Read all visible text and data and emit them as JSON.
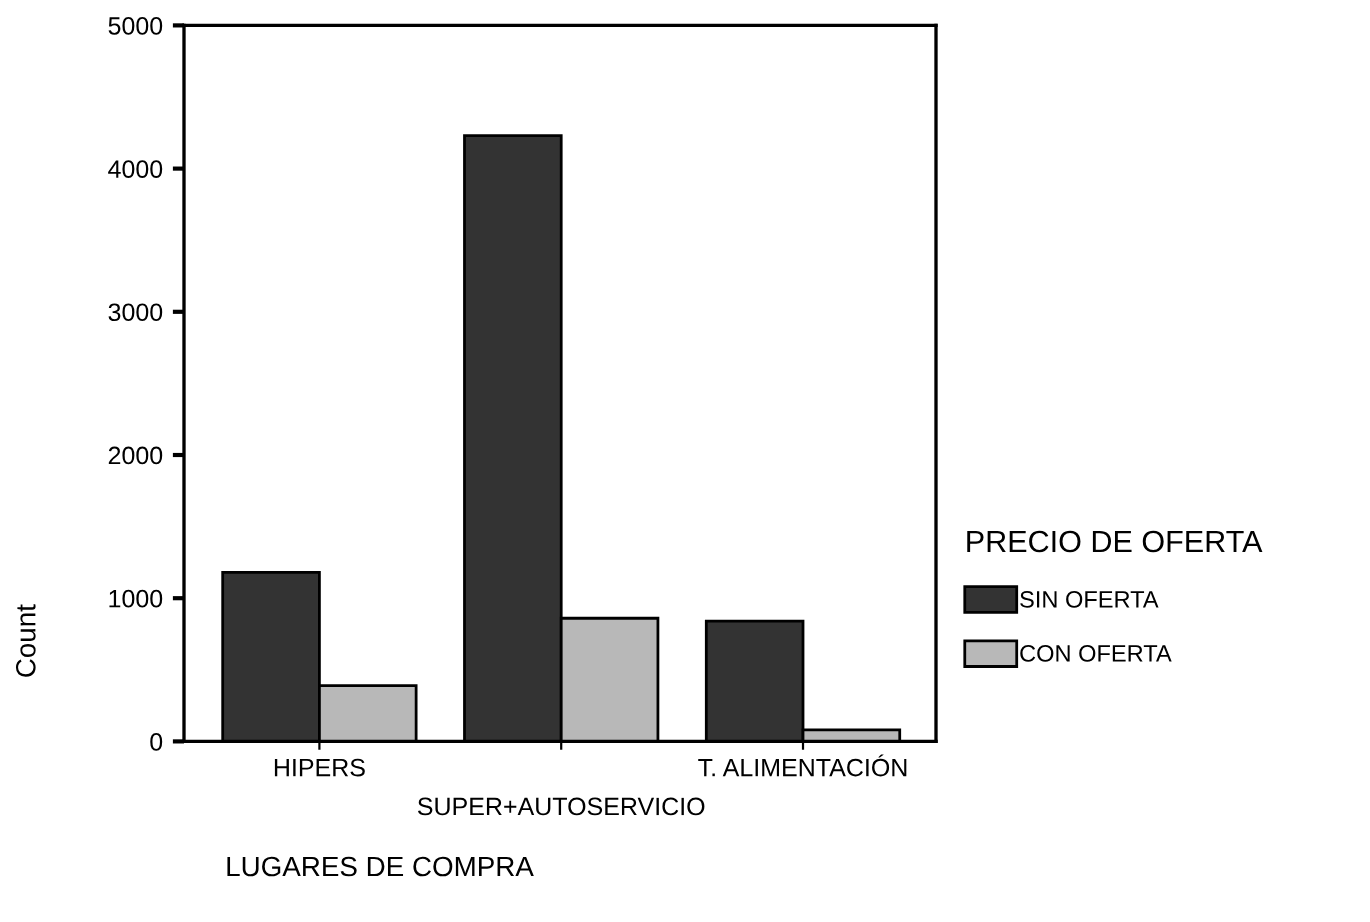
{
  "chart_data": {
    "type": "bar",
    "xlabel": "LUGARES DE COMPRA",
    "ylabel": "Count",
    "legend_title": "PRECIO DE OFERTA",
    "legend": "right",
    "grid": false,
    "categories": [
      "HIPERS",
      "SUPER+AUTOSERVICIO",
      "T. ALIMENTACIÓN"
    ],
    "series": [
      {
        "name": "SIN OFERTA",
        "color": "#333333",
        "values": [
          1180,
          4230,
          840
        ]
      },
      {
        "name": "CON OFERTA",
        "color": "#b8b8b8",
        "values": [
          390,
          860,
          80
        ]
      }
    ],
    "ylim": [
      0,
      5000
    ],
    "yticks": [
      0,
      1000,
      2000,
      3000,
      4000,
      5000
    ]
  }
}
